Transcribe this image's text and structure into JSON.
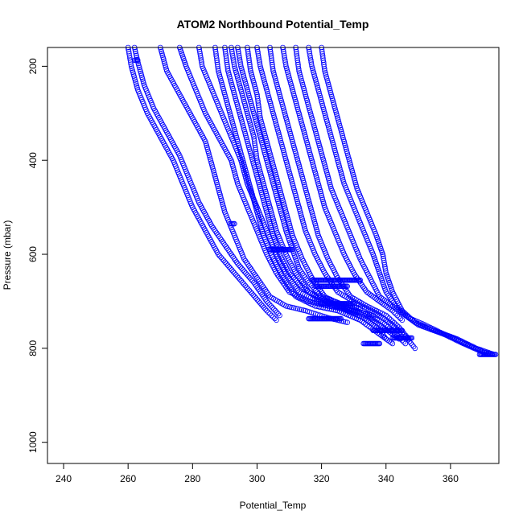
{
  "chart_data": {
    "type": "scatter",
    "title": "ATOM2 Northbound Potential_Temp",
    "xlabel": "Potential_Temp",
    "ylabel": "Pressure (mbar)",
    "xlim": [
      235,
      375
    ],
    "ylim": [
      1045,
      160
    ],
    "y_reversed": true,
    "x_ticks": [
      "240",
      "260",
      "280",
      "300",
      "320",
      "340",
      "360"
    ],
    "y_ticks": [
      "200",
      "400",
      "600",
      "800",
      "1000"
    ],
    "marker": "open-circle",
    "color": "#0000ff",
    "grid": false,
    "legend": "none",
    "series": [
      {
        "points": [
          [
            260,
            160
          ],
          [
            261,
            200
          ],
          [
            263,
            250
          ],
          [
            266,
            300
          ],
          [
            270,
            350
          ],
          [
            274,
            400
          ],
          [
            277,
            450
          ],
          [
            280,
            500
          ],
          [
            284,
            550
          ],
          [
            288,
            600
          ],
          [
            293,
            640
          ],
          [
            298,
            680
          ],
          [
            303,
            720
          ],
          [
            306,
            740
          ]
        ]
      },
      {
        "points": [
          [
            262,
            160
          ],
          [
            263,
            190
          ],
          [
            265,
            240
          ],
          [
            268,
            290
          ],
          [
            272,
            340
          ],
          [
            276,
            390
          ],
          [
            279,
            440
          ],
          [
            282,
            490
          ],
          [
            286,
            540
          ],
          [
            290,
            580
          ],
          [
            294,
            620
          ],
          [
            299,
            660
          ],
          [
            303,
            700
          ],
          [
            307,
            730
          ]
        ]
      },
      {
        "points": [
          [
            270,
            160
          ],
          [
            272,
            210
          ],
          [
            276,
            260
          ],
          [
            280,
            310
          ],
          [
            284,
            360
          ],
          [
            286,
            410
          ],
          [
            288,
            460
          ],
          [
            290,
            510
          ],
          [
            293,
            560
          ],
          [
            296,
            610
          ],
          [
            300,
            650
          ],
          [
            304,
            690
          ],
          [
            309,
            710
          ],
          [
            315,
            720
          ],
          [
            322,
            735
          ],
          [
            328,
            745
          ]
        ]
      },
      {
        "points": [
          [
            276,
            160
          ],
          [
            278,
            200
          ],
          [
            281,
            250
          ],
          [
            284,
            300
          ],
          [
            288,
            350
          ],
          [
            292,
            400
          ],
          [
            294,
            450
          ],
          [
            297,
            500
          ],
          [
            300,
            550
          ],
          [
            303,
            600
          ],
          [
            306,
            640
          ],
          [
            310,
            680
          ],
          [
            316,
            700
          ],
          [
            322,
            710
          ],
          [
            330,
            720
          ],
          [
            336,
            730
          ]
        ]
      },
      {
        "points": [
          [
            282,
            160
          ],
          [
            283,
            200
          ],
          [
            286,
            250
          ],
          [
            289,
            300
          ],
          [
            292,
            350
          ],
          [
            295,
            400
          ],
          [
            297,
            450
          ],
          [
            300,
            500
          ],
          [
            303,
            550
          ],
          [
            306,
            600
          ],
          [
            309,
            640
          ],
          [
            313,
            680
          ],
          [
            319,
            700
          ],
          [
            326,
            715
          ],
          [
            333,
            735
          ],
          [
            338,
            760
          ],
          [
            340,
            780
          ]
        ]
      },
      {
        "points": [
          [
            287,
            160
          ],
          [
            288,
            210
          ],
          [
            290,
            260
          ],
          [
            292,
            310
          ],
          [
            294,
            360
          ],
          [
            296,
            410
          ],
          [
            298,
            460
          ],
          [
            300,
            510
          ],
          [
            302,
            560
          ],
          [
            305,
            610
          ],
          [
            308,
            650
          ],
          [
            312,
            690
          ],
          [
            318,
            710
          ],
          [
            325,
            720
          ],
          [
            332,
            740
          ],
          [
            338,
            770
          ],
          [
            342,
            790
          ]
        ]
      },
      {
        "points": [
          [
            292,
            160
          ],
          [
            293,
            200
          ],
          [
            295,
            250
          ],
          [
            297,
            300
          ],
          [
            299,
            350
          ],
          [
            300,
            400
          ],
          [
            302,
            450
          ],
          [
            304,
            500
          ],
          [
            306,
            550
          ],
          [
            309,
            600
          ],
          [
            312,
            640
          ],
          [
            316,
            680
          ],
          [
            322,
            700
          ],
          [
            328,
            715
          ],
          [
            335,
            735
          ],
          [
            340,
            760
          ],
          [
            344,
            780
          ]
        ]
      },
      {
        "points": [
          [
            297,
            160
          ],
          [
            298,
            210
          ],
          [
            300,
            260
          ],
          [
            301,
            310
          ],
          [
            303,
            360
          ],
          [
            305,
            410
          ],
          [
            307,
            460
          ],
          [
            309,
            510
          ],
          [
            311,
            560
          ],
          [
            314,
            610
          ],
          [
            317,
            650
          ],
          [
            321,
            690
          ],
          [
            327,
            710
          ],
          [
            333,
            725
          ],
          [
            339,
            745
          ],
          [
            343,
            770
          ],
          [
            346,
            790
          ]
        ]
      },
      {
        "points": [
          [
            300,
            160
          ],
          [
            301,
            200
          ],
          [
            303,
            250
          ],
          [
            305,
            300
          ],
          [
            307,
            350
          ],
          [
            309,
            400
          ],
          [
            311,
            450
          ],
          [
            313,
            500
          ],
          [
            315,
            550
          ],
          [
            318,
            600
          ],
          [
            321,
            640
          ],
          [
            325,
            680
          ],
          [
            331,
            705
          ],
          [
            337,
            725
          ],
          [
            342,
            750
          ],
          [
            346,
            775
          ],
          [
            349,
            800
          ]
        ]
      },
      {
        "points": [
          [
            304,
            160
          ],
          [
            305,
            210
          ],
          [
            307,
            260
          ],
          [
            309,
            310
          ],
          [
            311,
            360
          ],
          [
            313,
            410
          ],
          [
            315,
            460
          ],
          [
            317,
            510
          ],
          [
            319,
            560
          ],
          [
            322,
            610
          ],
          [
            325,
            650
          ],
          [
            329,
            690
          ],
          [
            334,
            710
          ],
          [
            340,
            730
          ],
          [
            344,
            755
          ],
          [
            347,
            780
          ]
        ]
      },
      {
        "points": [
          [
            308,
            160
          ],
          [
            309,
            200
          ],
          [
            311,
            250
          ],
          [
            313,
            300
          ],
          [
            315,
            350
          ],
          [
            317,
            400
          ],
          [
            319,
            450
          ],
          [
            321,
            500
          ],
          [
            324,
            550
          ],
          [
            327,
            600
          ],
          [
            330,
            640
          ],
          [
            334,
            680
          ],
          [
            338,
            700
          ],
          [
            342,
            720
          ],
          [
            345,
            740
          ]
        ]
      },
      {
        "points": [
          [
            312,
            160
          ],
          [
            313,
            210
          ],
          [
            315,
            260
          ],
          [
            317,
            310
          ],
          [
            319,
            360
          ],
          [
            321,
            410
          ],
          [
            323,
            460
          ],
          [
            326,
            510
          ],
          [
            329,
            560
          ],
          [
            332,
            610
          ],
          [
            335,
            650
          ],
          [
            338,
            690
          ],
          [
            342,
            710
          ],
          [
            346,
            730
          ],
          [
            350,
            750
          ],
          [
            356,
            765
          ],
          [
            362,
            780
          ],
          [
            368,
            800
          ],
          [
            373,
            812
          ]
        ]
      },
      {
        "points": [
          [
            316,
            160
          ],
          [
            317,
            200
          ],
          [
            319,
            250
          ],
          [
            321,
            300
          ],
          [
            323,
            350
          ],
          [
            325,
            400
          ],
          [
            327,
            450
          ],
          [
            330,
            500
          ],
          [
            333,
            550
          ],
          [
            336,
            600
          ],
          [
            338,
            640
          ],
          [
            340,
            680
          ],
          [
            343,
            710
          ],
          [
            347,
            735
          ],
          [
            352,
            750
          ],
          [
            358,
            770
          ],
          [
            364,
            790
          ],
          [
            370,
            808
          ],
          [
            373,
            812
          ]
        ]
      },
      {
        "points": [
          [
            320,
            160
          ],
          [
            321,
            210
          ],
          [
            323,
            260
          ],
          [
            325,
            310
          ],
          [
            327,
            360
          ],
          [
            329,
            410
          ],
          [
            331,
            460
          ],
          [
            334,
            510
          ],
          [
            337,
            560
          ],
          [
            339,
            600
          ],
          [
            340,
            640
          ],
          [
            342,
            680
          ],
          [
            345,
            720
          ],
          [
            349,
            745
          ],
          [
            354,
            760
          ],
          [
            360,
            775
          ],
          [
            366,
            795
          ],
          [
            371,
            810
          ]
        ]
      },
      {
        "points": [
          [
            294,
            160
          ],
          [
            295,
            200
          ],
          [
            297,
            250
          ],
          [
            299,
            300
          ],
          [
            301,
            350
          ],
          [
            303,
            400
          ],
          [
            305,
            450
          ],
          [
            307,
            500
          ],
          [
            309,
            550
          ],
          [
            311,
            590
          ],
          [
            313,
            630
          ],
          [
            316,
            660
          ],
          [
            320,
            690
          ],
          [
            326,
            705
          ],
          [
            332,
            715
          ]
        ]
      },
      {
        "points": [
          [
            290,
            160
          ],
          [
            291,
            210
          ],
          [
            293,
            260
          ],
          [
            295,
            310
          ],
          [
            297,
            360
          ],
          [
            299,
            410
          ],
          [
            301,
            460
          ],
          [
            303,
            510
          ],
          [
            305,
            560
          ],
          [
            307,
            600
          ],
          [
            310,
            640
          ],
          [
            314,
            670
          ],
          [
            319,
            695
          ],
          [
            325,
            710
          ],
          [
            331,
            725
          ]
        ]
      }
    ],
    "segments": [
      {
        "x": [
          304,
          311
        ],
        "y": 590
      },
      {
        "x": [
          317,
          332
        ],
        "y": 655
      },
      {
        "x": [
          318,
          328
        ],
        "y": 668
      },
      {
        "x": [
          320,
          330
        ],
        "y": 705
      },
      {
        "x": [
          316,
          326
        ],
        "y": 737
      },
      {
        "x": [
          336,
          345
        ],
        "y": 762
      },
      {
        "x": [
          333,
          338
        ],
        "y": 790
      },
      {
        "x": [
          342,
          348
        ],
        "y": 778
      },
      {
        "x": [
          369,
          374
        ],
        "y": 813
      },
      {
        "x": [
          262,
          263
        ],
        "y": 187
      },
      {
        "x": [
          292,
          293
        ],
        "y": 535
      }
    ]
  }
}
